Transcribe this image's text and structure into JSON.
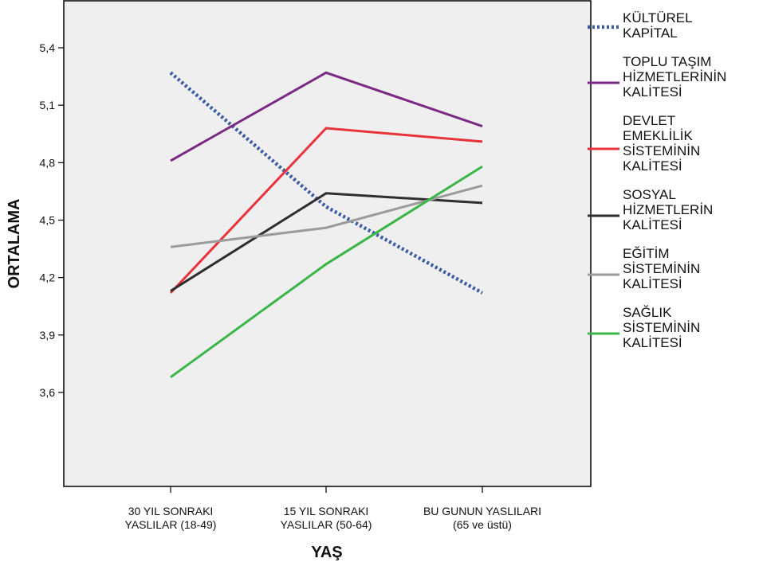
{
  "chart_data": {
    "type": "line",
    "title": "",
    "xlabel": "YAŞ",
    "ylabel": "ORTALAMA",
    "categories": [
      [
        "30 YIL SONRAKI",
        "YASLILAR (18-49)"
      ],
      [
        "15 YIL SONRAKI",
        "YASLILAR (50-64)"
      ],
      [
        "BU GUNUN YASLILARI",
        "(65 ve üstü)"
      ]
    ],
    "ylim": [
      3.4,
      5.6
    ],
    "yticks": [
      3.6,
      3.9,
      4.2,
      4.5,
      4.8,
      5.1,
      5.4
    ],
    "ytick_labels": [
      "3,6",
      "3,9",
      "4,2",
      "4,5",
      "4,8",
      "5,1",
      "5,4"
    ],
    "grid": false,
    "plot_background": "#efefef",
    "legend_position": "right",
    "series": [
      {
        "name": [
          "KÜLTÜREL",
          "KAPİTAL"
        ],
        "values": [
          5.27,
          4.57,
          4.12
        ],
        "color": "#3b5ba5",
        "dashed": true
      },
      {
        "name": [
          "TOPLU TAŞIM",
          "HİZMETLERİNİN",
          "KALİTESİ"
        ],
        "values": [
          4.81,
          5.27,
          4.99
        ],
        "color": "#7b2a83",
        "dashed": false
      },
      {
        "name": [
          "DEVLET",
          "EMEKLİLİK",
          "SİSTEMİNİN",
          "KALİTESİ"
        ],
        "values": [
          4.12,
          4.98,
          4.91
        ],
        "color": "#e8333a",
        "dashed": false
      },
      {
        "name": [
          "SOSYAL",
          "HİZMETLERİN",
          "KALİTESİ"
        ],
        "values": [
          4.13,
          4.64,
          4.59
        ],
        "color": "#2e2e2e",
        "dashed": false
      },
      {
        "name": [
          "EĞİTİM",
          "SİSTEMİNİN",
          "KALİTESİ"
        ],
        "values": [
          4.36,
          4.46,
          4.68
        ],
        "color": "#9b9b9b",
        "dashed": false
      },
      {
        "name": [
          "SAĞLIK",
          "SİSTEMİNİN",
          "KALİTESİ"
        ],
        "values": [
          3.68,
          4.27,
          4.78
        ],
        "color": "#3bb548",
        "dashed": false
      }
    ]
  }
}
